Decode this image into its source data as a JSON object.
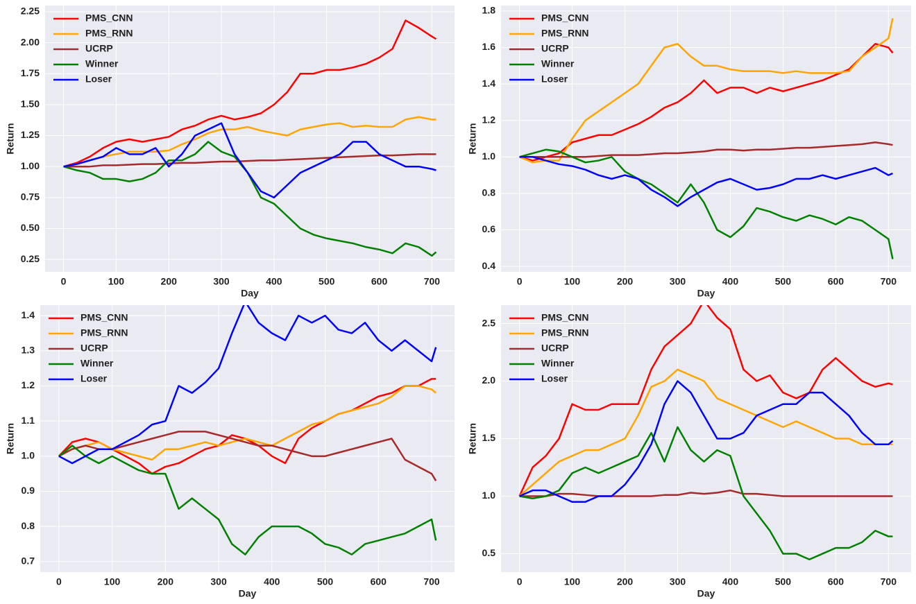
{
  "chart_data": [
    {
      "type": "line",
      "xlabel": "Day",
      "ylabel": "Return",
      "grid": true,
      "legend": "upper left",
      "x": [
        0,
        25,
        50,
        75,
        100,
        125,
        150,
        175,
        200,
        225,
        250,
        275,
        300,
        325,
        350,
        375,
        400,
        425,
        450,
        475,
        500,
        525,
        550,
        575,
        600,
        625,
        650,
        675,
        700,
        708
      ],
      "xlim": [
        -35,
        743
      ],
      "xticks": [
        0,
        100,
        200,
        300,
        400,
        500,
        600,
        700
      ],
      "ylim": [
        0.15,
        2.3
      ],
      "yticks": [
        0.25,
        {
          "value": 0.5,
          "label": "0.50"
        },
        0.75,
        {
          "value": 1,
          "label": "1.00"
        },
        1.25,
        {
          "value": 1.5,
          "label": "1.50"
        },
        1.75,
        {
          "value": 2,
          "label": "2.00"
        },
        2.25
      ],
      "series": [
        {
          "name": "PMS_CNN",
          "color": "#ff0000",
          "values": [
            1.0,
            1.03,
            1.08,
            1.15,
            1.2,
            1.22,
            1.2,
            1.22,
            1.24,
            1.3,
            1.33,
            1.38,
            1.41,
            1.38,
            1.4,
            1.43,
            1.5,
            1.6,
            1.75,
            1.75,
            1.78,
            1.78,
            1.8,
            1.83,
            1.88,
            1.95,
            2.18,
            2.12,
            2.05,
            2.03
          ]
        },
        {
          "name": "PMS_RNN",
          "color": "#ffa500",
          "values": [
            1.0,
            1.02,
            1.05,
            1.08,
            1.1,
            1.12,
            1.12,
            1.12,
            1.13,
            1.18,
            1.22,
            1.27,
            1.3,
            1.3,
            1.32,
            1.29,
            1.27,
            1.25,
            1.3,
            1.32,
            1.34,
            1.35,
            1.32,
            1.33,
            1.32,
            1.32,
            1.38,
            1.4,
            1.38,
            1.38
          ]
        },
        {
          "name": "UCRP",
          "color": "#a52a2a",
          "values": [
            1.0,
            1.0,
            1.0,
            1.01,
            1.01,
            1.015,
            1.02,
            1.02,
            1.025,
            1.03,
            1.03,
            1.035,
            1.04,
            1.04,
            1.045,
            1.05,
            1.05,
            1.055,
            1.06,
            1.065,
            1.07,
            1.075,
            1.08,
            1.085,
            1.09,
            1.09,
            1.095,
            1.1,
            1.1,
            1.1
          ]
        },
        {
          "name": "Winner",
          "color": "#008000",
          "values": [
            1.0,
            0.97,
            0.95,
            0.9,
            0.9,
            0.88,
            0.9,
            0.95,
            1.05,
            1.05,
            1.1,
            1.2,
            1.12,
            1.08,
            0.95,
            0.75,
            0.7,
            0.6,
            0.5,
            0.45,
            0.42,
            0.4,
            0.38,
            0.35,
            0.33,
            0.3,
            0.38,
            0.35,
            0.28,
            0.31
          ]
        },
        {
          "name": "Loser",
          "color": "#0000ff",
          "values": [
            1.0,
            1.02,
            1.05,
            1.08,
            1.15,
            1.1,
            1.1,
            1.15,
            1.0,
            1.1,
            1.25,
            1.3,
            1.35,
            1.1,
            0.95,
            0.8,
            0.75,
            0.85,
            0.95,
            1.0,
            1.05,
            1.1,
            1.2,
            1.2,
            1.1,
            1.05,
            1.0,
            1.0,
            0.98,
            0.97
          ]
        }
      ]
    },
    {
      "type": "line",
      "xlabel": "Day",
      "ylabel": "Return",
      "grid": true,
      "legend": "upper left",
      "x": [
        0,
        25,
        50,
        75,
        100,
        125,
        150,
        175,
        200,
        225,
        250,
        275,
        300,
        325,
        350,
        375,
        400,
        425,
        450,
        475,
        500,
        525,
        550,
        575,
        600,
        625,
        650,
        675,
        700,
        708
      ],
      "xlim": [
        -35,
        743
      ],
      "xticks": [
        0,
        100,
        200,
        300,
        400,
        500,
        600,
        700
      ],
      "ylim": [
        0.37,
        1.83
      ],
      "yticks": [
        0.4,
        0.6,
        0.8,
        {
          "value": 1,
          "label": "1.0"
        },
        1.2,
        1.4,
        1.6,
        1.8
      ],
      "series": [
        {
          "name": "PMS_CNN",
          "color": "#ff0000",
          "values": [
            1.0,
            0.98,
            1.0,
            1.02,
            1.08,
            1.1,
            1.12,
            1.12,
            1.15,
            1.18,
            1.22,
            1.27,
            1.3,
            1.35,
            1.42,
            1.35,
            1.38,
            1.38,
            1.35,
            1.38,
            1.36,
            1.38,
            1.4,
            1.42,
            1.45,
            1.48,
            1.55,
            1.62,
            1.6,
            1.57
          ]
        },
        {
          "name": "PMS_RNN",
          "color": "#ffa500",
          "values": [
            1.0,
            0.97,
            0.98,
            0.98,
            1.1,
            1.2,
            1.25,
            1.3,
            1.35,
            1.4,
            1.5,
            1.6,
            1.62,
            1.55,
            1.5,
            1.5,
            1.48,
            1.47,
            1.47,
            1.47,
            1.46,
            1.47,
            1.46,
            1.46,
            1.46,
            1.47,
            1.55,
            1.6,
            1.65,
            1.76
          ]
        },
        {
          "name": "UCRP",
          "color": "#a52a2a",
          "values": [
            1.0,
            1.0,
            1.0,
            1.0,
            1.0,
            1.0,
            1.005,
            1.01,
            1.01,
            1.01,
            1.015,
            1.02,
            1.02,
            1.025,
            1.03,
            1.04,
            1.04,
            1.035,
            1.04,
            1.04,
            1.045,
            1.05,
            1.05,
            1.055,
            1.06,
            1.065,
            1.07,
            1.08,
            1.07,
            1.065
          ]
        },
        {
          "name": "Winner",
          "color": "#008000",
          "values": [
            1.0,
            1.02,
            1.04,
            1.03,
            1.0,
            0.97,
            0.98,
            1.0,
            0.92,
            0.88,
            0.85,
            0.8,
            0.75,
            0.85,
            0.75,
            0.6,
            0.56,
            0.62,
            0.72,
            0.7,
            0.67,
            0.65,
            0.68,
            0.66,
            0.63,
            0.67,
            0.65,
            0.6,
            0.55,
            0.44
          ]
        },
        {
          "name": "Loser",
          "color": "#0000ff",
          "values": [
            1.0,
            1.0,
            0.98,
            0.96,
            0.95,
            0.93,
            0.9,
            0.88,
            0.9,
            0.88,
            0.82,
            0.78,
            0.73,
            0.78,
            0.82,
            0.86,
            0.88,
            0.85,
            0.82,
            0.83,
            0.85,
            0.88,
            0.88,
            0.9,
            0.88,
            0.9,
            0.92,
            0.94,
            0.9,
            0.91
          ]
        }
      ]
    },
    {
      "type": "line",
      "xlabel": "Day",
      "ylabel": "Return",
      "grid": true,
      "legend": "upper left",
      "x": [
        0,
        25,
        50,
        75,
        100,
        125,
        150,
        175,
        200,
        225,
        250,
        275,
        300,
        325,
        350,
        375,
        400,
        425,
        450,
        475,
        500,
        525,
        550,
        575,
        600,
        625,
        650,
        675,
        700,
        708
      ],
      "xlim": [
        -35,
        743
      ],
      "xticks": [
        0,
        100,
        200,
        300,
        400,
        500,
        600,
        700
      ],
      "ylim": [
        0.67,
        1.43
      ],
      "yticks": [
        0.7,
        0.8,
        0.9,
        {
          "value": 1,
          "label": "1.0"
        },
        1.1,
        1.2,
        1.3,
        1.4
      ],
      "series": [
        {
          "name": "PMS_CNN",
          "color": "#ff0000",
          "values": [
            1.0,
            1.04,
            1.05,
            1.04,
            1.02,
            1.0,
            0.98,
            0.95,
            0.97,
            0.98,
            1.0,
            1.02,
            1.03,
            1.06,
            1.05,
            1.03,
            1.0,
            0.98,
            1.05,
            1.08,
            1.1,
            1.12,
            1.13,
            1.15,
            1.17,
            1.18,
            1.2,
            1.2,
            1.22,
            1.22
          ]
        },
        {
          "name": "PMS_RNN",
          "color": "#ffa500",
          "values": [
            1.0,
            1.02,
            1.03,
            1.04,
            1.02,
            1.01,
            1.0,
            0.99,
            1.02,
            1.02,
            1.03,
            1.04,
            1.03,
            1.04,
            1.05,
            1.04,
            1.03,
            1.05,
            1.07,
            1.09,
            1.1,
            1.12,
            1.13,
            1.14,
            1.15,
            1.17,
            1.2,
            1.2,
            1.19,
            1.18
          ]
        },
        {
          "name": "UCRP",
          "color": "#a52a2a",
          "values": [
            1.0,
            1.02,
            1.03,
            1.02,
            1.02,
            1.03,
            1.04,
            1.05,
            1.06,
            1.07,
            1.07,
            1.07,
            1.06,
            1.05,
            1.04,
            1.03,
            1.03,
            1.02,
            1.01,
            1.0,
            1.0,
            1.01,
            1.02,
            1.03,
            1.04,
            1.05,
            0.99,
            0.97,
            0.95,
            0.93
          ]
        },
        {
          "name": "Winner",
          "color": "#008000",
          "values": [
            1.0,
            1.03,
            1.0,
            0.98,
            1.0,
            0.98,
            0.96,
            0.95,
            0.95,
            0.85,
            0.88,
            0.85,
            0.82,
            0.75,
            0.72,
            0.77,
            0.8,
            0.8,
            0.8,
            0.78,
            0.75,
            0.74,
            0.72,
            0.75,
            0.76,
            0.77,
            0.78,
            0.8,
            0.82,
            0.76
          ]
        },
        {
          "name": "Loser",
          "color": "#0000ff",
          "values": [
            1.0,
            0.98,
            1.0,
            1.02,
            1.02,
            1.04,
            1.06,
            1.09,
            1.1,
            1.2,
            1.18,
            1.21,
            1.25,
            1.35,
            1.44,
            1.38,
            1.35,
            1.33,
            1.4,
            1.38,
            1.4,
            1.36,
            1.35,
            1.38,
            1.33,
            1.3,
            1.33,
            1.3,
            1.27,
            1.31
          ]
        }
      ]
    },
    {
      "type": "line",
      "xlabel": "Day",
      "ylabel": "Return",
      "grid": true,
      "legend": "upper left",
      "x": [
        0,
        25,
        50,
        75,
        100,
        125,
        150,
        175,
        200,
        225,
        250,
        275,
        300,
        325,
        350,
        375,
        400,
        425,
        450,
        475,
        500,
        525,
        550,
        575,
        600,
        625,
        650,
        675,
        700,
        708
      ],
      "xlim": [
        -35,
        743
      ],
      "xticks": [
        0,
        100,
        200,
        300,
        400,
        500,
        600,
        700
      ],
      "ylim": [
        0.34,
        2.66
      ],
      "yticks": [
        0.5,
        {
          "value": 1,
          "label": "1.0"
        },
        1.5,
        {
          "value": 2,
          "label": "2.0"
        },
        2.5
      ],
      "series": [
        {
          "name": "PMS_CNN",
          "color": "#ff0000",
          "values": [
            1.0,
            1.25,
            1.35,
            1.5,
            1.8,
            1.75,
            1.75,
            1.8,
            1.8,
            1.8,
            2.1,
            2.3,
            2.4,
            2.5,
            2.7,
            2.55,
            2.45,
            2.1,
            2.0,
            2.05,
            1.9,
            1.85,
            1.9,
            2.1,
            2.2,
            2.1,
            2.0,
            1.95,
            1.98,
            1.97
          ]
        },
        {
          "name": "PMS_RNN",
          "color": "#ffa500",
          "values": [
            1.0,
            1.1,
            1.2,
            1.3,
            1.35,
            1.4,
            1.4,
            1.45,
            1.5,
            1.7,
            1.95,
            2.0,
            2.1,
            2.05,
            2.0,
            1.85,
            1.8,
            1.75,
            1.7,
            1.65,
            1.6,
            1.65,
            1.6,
            1.55,
            1.5,
            1.5,
            1.45,
            1.45,
            1.45,
            1.45
          ]
        },
        {
          "name": "UCRP",
          "color": "#a52a2a",
          "values": [
            1.0,
            1.0,
            1.0,
            1.02,
            1.02,
            1.01,
            1.0,
            1.0,
            1.0,
            1.0,
            1.0,
            1.01,
            1.01,
            1.03,
            1.02,
            1.03,
            1.05,
            1.02,
            1.02,
            1.01,
            1.0,
            1.0,
            1.0,
            1.0,
            1.0,
            1.0,
            1.0,
            1.0,
            1.0,
            1.0
          ]
        },
        {
          "name": "Winner",
          "color": "#008000",
          "values": [
            1.0,
            0.98,
            1.0,
            1.05,
            1.2,
            1.25,
            1.2,
            1.25,
            1.3,
            1.35,
            1.55,
            1.3,
            1.6,
            1.4,
            1.3,
            1.4,
            1.35,
            1.0,
            0.85,
            0.7,
            0.5,
            0.5,
            0.45,
            0.5,
            0.55,
            0.55,
            0.6,
            0.7,
            0.65,
            0.65
          ]
        },
        {
          "name": "Loser",
          "color": "#0000ff",
          "values": [
            1.0,
            1.05,
            1.05,
            1.0,
            0.95,
            0.95,
            1.0,
            1.0,
            1.1,
            1.25,
            1.45,
            1.8,
            2.0,
            1.9,
            1.7,
            1.5,
            1.5,
            1.55,
            1.7,
            1.75,
            1.8,
            1.8,
            1.9,
            1.9,
            1.8,
            1.7,
            1.55,
            1.45,
            1.45,
            1.48
          ]
        }
      ]
    }
  ]
}
